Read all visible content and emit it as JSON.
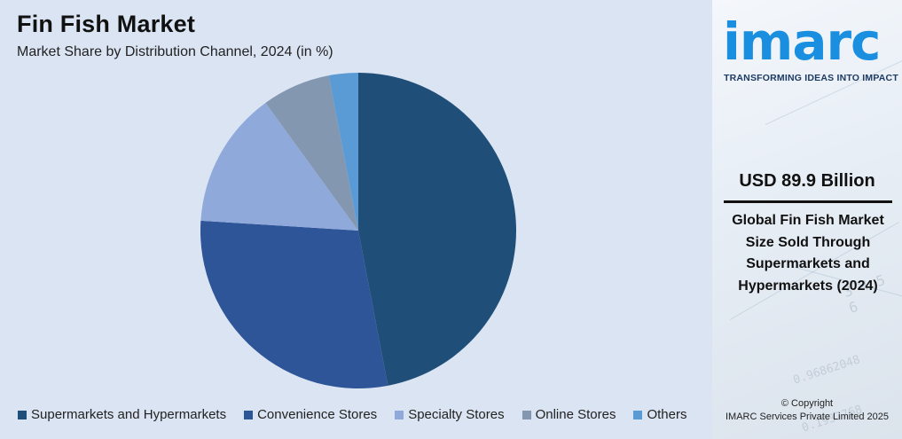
{
  "chart_data": {
    "type": "pie",
    "title": "Fin Fish Market",
    "subtitle": "Market Share by Distribution Channel, 2024 (in %)",
    "categories": [
      "Supermarkets and Hypermarkets",
      "Convenience Stores",
      "Specialty Stores",
      "Online Stores",
      "Others"
    ],
    "values": [
      47,
      29,
      14,
      7,
      3
    ],
    "colors": [
      "#1f4e79",
      "#2e5598",
      "#8fa9db",
      "#8497b0",
      "#5b9bd5"
    ],
    "start_angle": "12 o'clock, clockwise",
    "legend_position": "bottom"
  },
  "sidebar": {
    "logo_text": "imarc",
    "tagline": "TRANSFORMING IDEAS INTO IMPACT",
    "stat_value": "USD 89.9 Billion",
    "stat_description": "Global Fin Fish Market Size Sold Through Supermarkets and Hypermarkets (2024)",
    "copyright_line1": "© Copyright",
    "copyright_line2": "IMARC Services Private Limited 2025",
    "accent_color": "#1a8fe0"
  }
}
